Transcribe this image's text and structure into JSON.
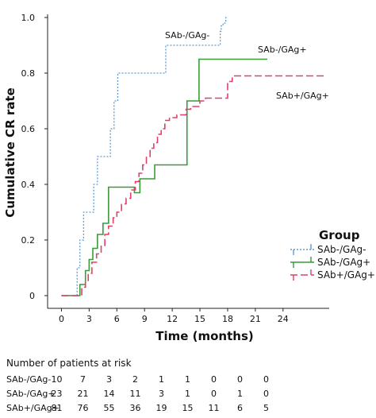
{
  "chart_data": {
    "type": "line",
    "step": true,
    "ylabel": "Cumulative CR rate",
    "xlabel": "Time (months)",
    "xlim": [
      -1.5,
      29
    ],
    "ylim": [
      0,
      1.0
    ],
    "xticks": [
      0,
      3,
      6,
      9,
      12,
      15,
      18,
      21,
      24
    ],
    "yticks": [
      0,
      0.2,
      0.4,
      0.6,
      0.8,
      1.0
    ],
    "ytick_labels": [
      "0",
      "0.2",
      "0.4",
      "0.6",
      "0.8",
      "1.0"
    ],
    "grid": false,
    "legend": {
      "title": "Group",
      "placement": "right",
      "entries": [
        "SAb-/GAg-",
        "SAb-/GAg+",
        "SAb+/GAg+"
      ]
    },
    "series": [
      {
        "name": "SAb-/GAg-",
        "color": "#5b9bd5",
        "dash": "2,2",
        "x": [
          0,
          1.4,
          1.7,
          2.0,
          2.4,
          3.2,
          3.5,
          3.9,
          5.3,
          5.7,
          6.1,
          10.8,
          11.3,
          17.0,
          17.2,
          17.3,
          17.5,
          17.8
        ],
        "y": [
          0,
          0,
          0.1,
          0.2,
          0.3,
          0.3,
          0.4,
          0.5,
          0.6,
          0.7,
          0.8,
          0.8,
          0.9,
          0.9,
          0.95,
          0.97,
          0.98,
          1.0
        ],
        "end_x": 18.0
      },
      {
        "name": "SAb-/GAg+",
        "color": "#3a9a3a",
        "dash": "",
        "x": [
          0,
          1.5,
          2.0,
          2.6,
          3.0,
          3.4,
          3.9,
          4.5,
          5.1,
          7.1,
          7.9,
          8.5,
          10.1,
          10.6,
          13.6,
          14.1,
          14.9
        ],
        "y": [
          0,
          0,
          0.04,
          0.09,
          0.13,
          0.17,
          0.22,
          0.26,
          0.39,
          0.39,
          0.37,
          0.42,
          0.47,
          0.47,
          0.7,
          0.7,
          0.85
        ],
        "end_x": 22.3
      },
      {
        "name": "SAb+/GAg+",
        "color": "#e0406a",
        "dash": "9,4",
        "x": [
          0,
          1.8,
          2.2,
          2.6,
          2.9,
          3.3,
          3.8,
          4.3,
          4.7,
          5.1,
          5.6,
          6.0,
          6.5,
          7.0,
          7.5,
          8.0,
          8.4,
          8.8,
          9.2,
          9.6,
          10.0,
          10.4,
          10.8,
          11.2,
          11.7,
          12.1,
          12.5,
          13.1,
          13.5,
          14.0,
          15.0,
          15.6,
          16.2,
          18.0,
          18.5
        ],
        "y": [
          0,
          0,
          0.03,
          0.05,
          0.08,
          0.12,
          0.15,
          0.18,
          0.22,
          0.25,
          0.28,
          0.3,
          0.33,
          0.35,
          0.38,
          0.41,
          0.44,
          0.47,
          0.5,
          0.53,
          0.55,
          0.58,
          0.6,
          0.63,
          0.64,
          0.64,
          0.65,
          0.65,
          0.67,
          0.68,
          0.7,
          0.71,
          0.71,
          0.77,
          0.79
        ],
        "end_x": 28.5
      }
    ],
    "annotations": [
      {
        "text": "SAb-/GAg-",
        "series": 0
      },
      {
        "text": "SAb-/GAg+",
        "series": 1
      },
      {
        "text": "SAb+/GAg+",
        "series": 2
      }
    ]
  },
  "risk_table": {
    "title": "Number of patients at risk",
    "rows": [
      {
        "label": "SAb-/GAg-",
        "values": [
          "10",
          "7",
          "3",
          "2",
          "1",
          "1",
          "0",
          "0",
          "0"
        ]
      },
      {
        "label": "SAb-/GAg+",
        "values": [
          "23",
          "21",
          "14",
          "11",
          "3",
          "1",
          "0",
          "1",
          "0"
        ]
      },
      {
        "label": "SAb+/GAg+",
        "values": [
          "81",
          "76",
          "55",
          "36",
          "19",
          "15",
          "11",
          "6",
          "5"
        ]
      }
    ]
  }
}
